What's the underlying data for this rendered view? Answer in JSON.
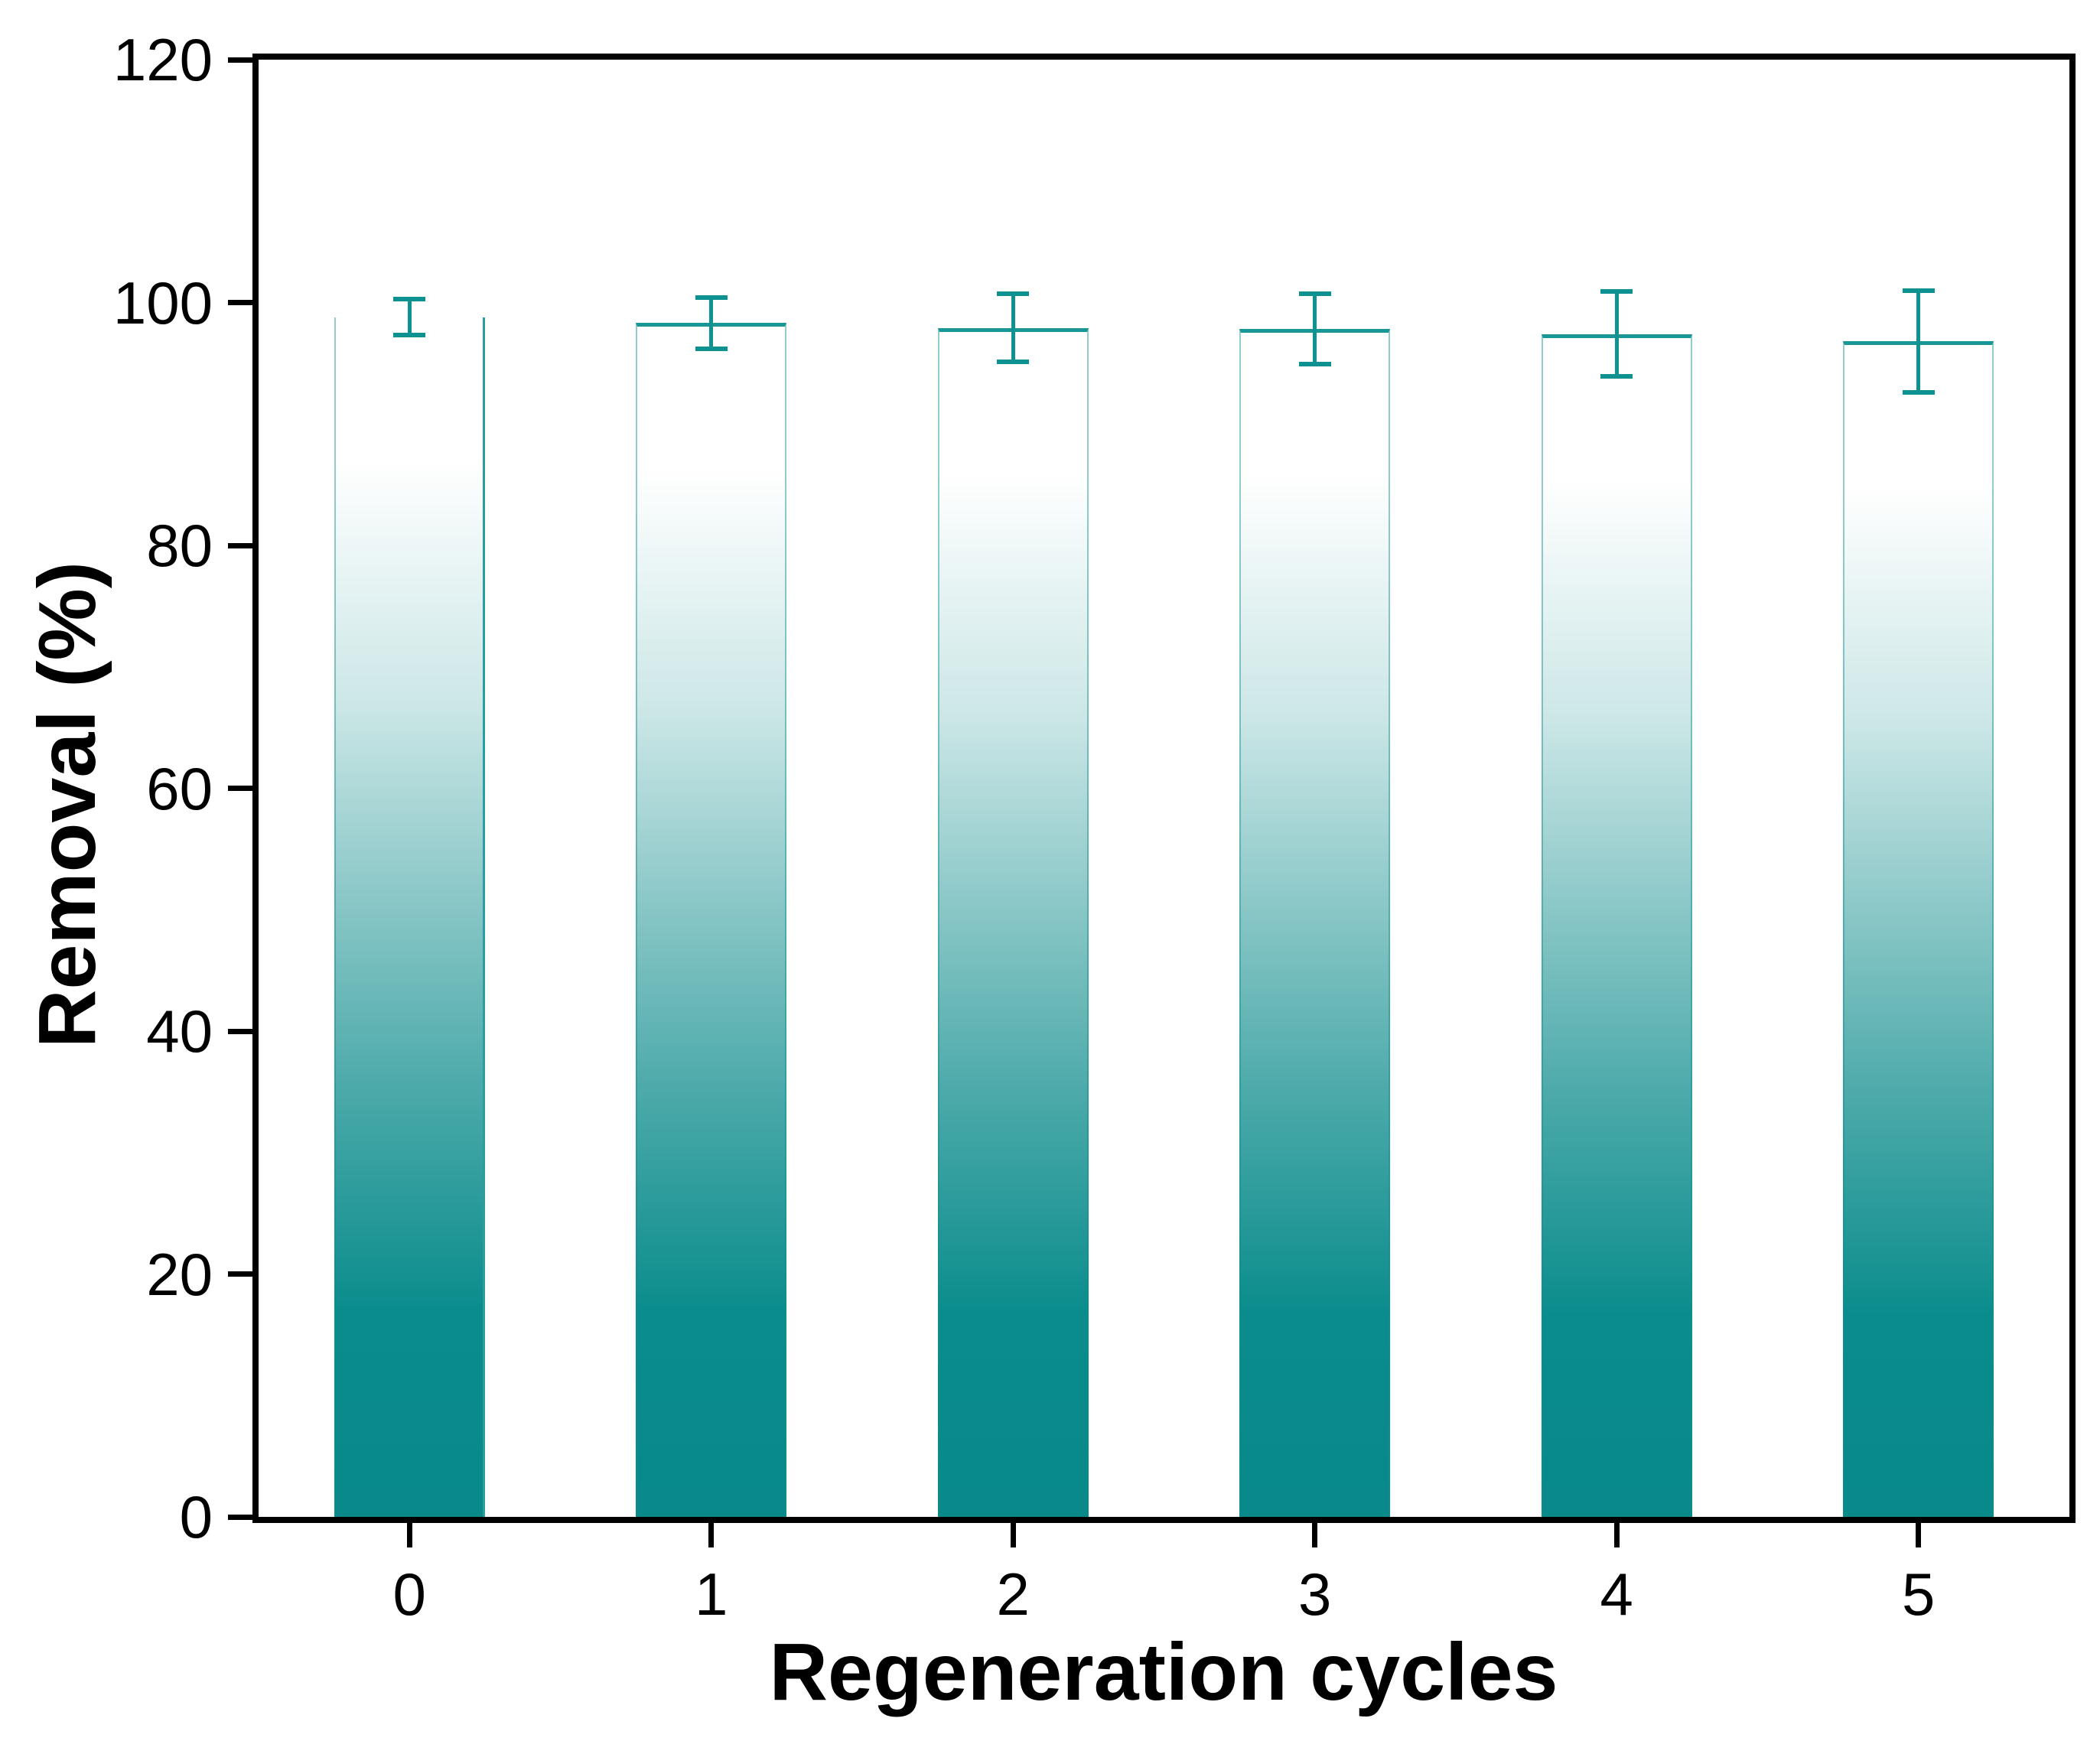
{
  "chart_data": {
    "type": "bar",
    "title": "",
    "xlabel": "Regeneration cycles",
    "ylabel": "Removal (%)",
    "categories": [
      "0",
      "1",
      "2",
      "3",
      "4",
      "5"
    ],
    "values": [
      98.8,
      98.3,
      97.9,
      97.8,
      97.4,
      96.8
    ],
    "errors": [
      1.5,
      2.1,
      2.8,
      2.9,
      3.5,
      4.2
    ],
    "ylim": [
      0,
      120
    ],
    "yticks": [
      0,
      20,
      40,
      60,
      80,
      100,
      120
    ],
    "grid": "off",
    "legend": "none",
    "bar_width_fraction": 0.5,
    "style": {
      "bar_fill_top": "#ffffff",
      "bar_fill_bottom": "#0a8c8c",
      "bar_edge": "#0d9191",
      "error_bar_color": "#0d9191",
      "axis_color": "#000000",
      "background": "#ffffff",
      "first_bar_top_line": false
    }
  }
}
